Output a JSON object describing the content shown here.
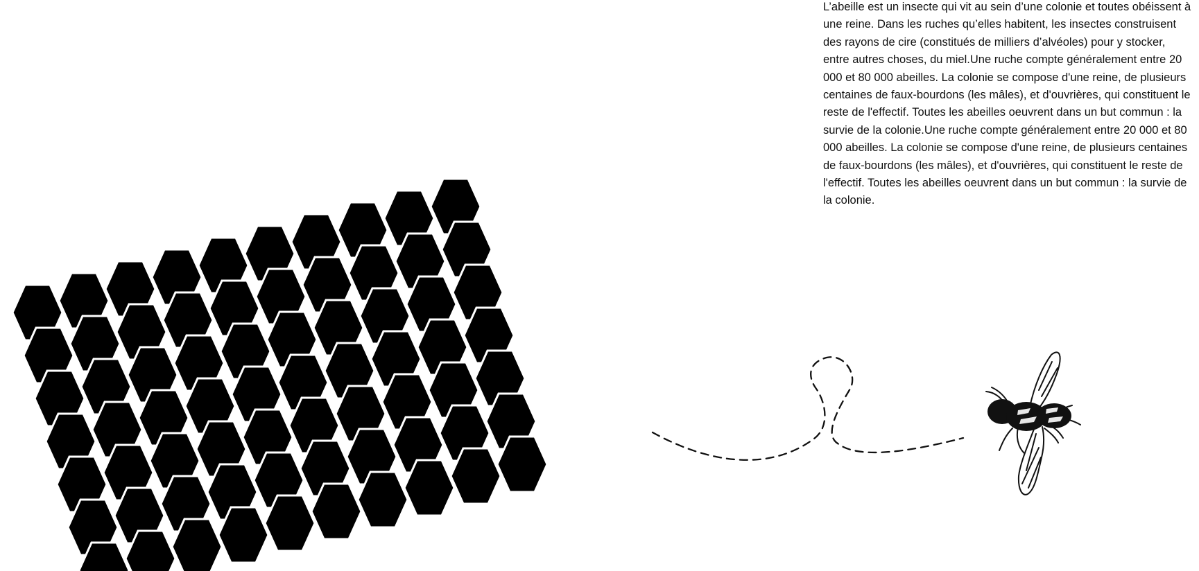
{
  "description_text": "L’abeille est un insecte qui vit au sein d’une colonie et toutes obéissent à une reine. Dans les ruches qu’elles habitent, les insectes construisent des rayons de cire (constitués de milliers d’alvéoles) pour y stocker, entre autres choses, du miel.Une ruche compte généralement entre 20 000 et 80 000 abeilles. La colonie se compose d'une reine, de plusieurs centaines de faux-bourdons (les mâles), et d'ouvrières, qui constituent le reste de l'effectif. Toutes les abeilles oeuvrent dans un but commun : la survie de la colonie.Une ruche compte généralement entre 20 000 et 80 000 abeilles. La colonie se compose d'une reine, de plusieurs centaines de faux-bourdons (les mâles), et d'ouvrières, qui constituent le reste de l'effectif. Toutes les abeilles oeuvrent dans un but commun : la survie de la colonie.",
  "colors": {
    "background": "#ffffff",
    "honeycomb_fill": "#000000",
    "text": "#111111",
    "path_stroke": "#111111"
  },
  "icons": {
    "bee": "bee-icon",
    "honeycomb": "honeycomb-icon",
    "flight_path": "dashed-flight-path-icon"
  }
}
